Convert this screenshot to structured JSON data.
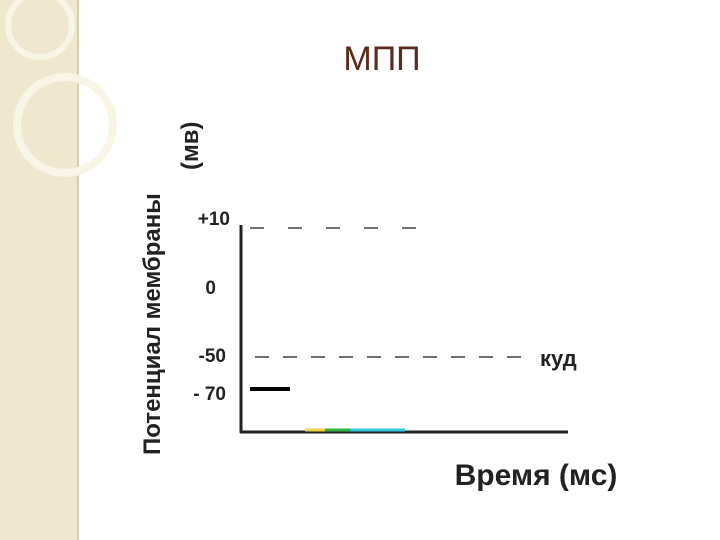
{
  "slide": {
    "title": "МПП",
    "y_axis_label": [
      "Потенциал мембраны",
      "(мв)"
    ],
    "x_axis_label": "Время (мс)",
    "y_ticks": [
      "+10",
      "0",
      "-50",
      "- 70"
    ],
    "threshold_label": "куд"
  }
}
